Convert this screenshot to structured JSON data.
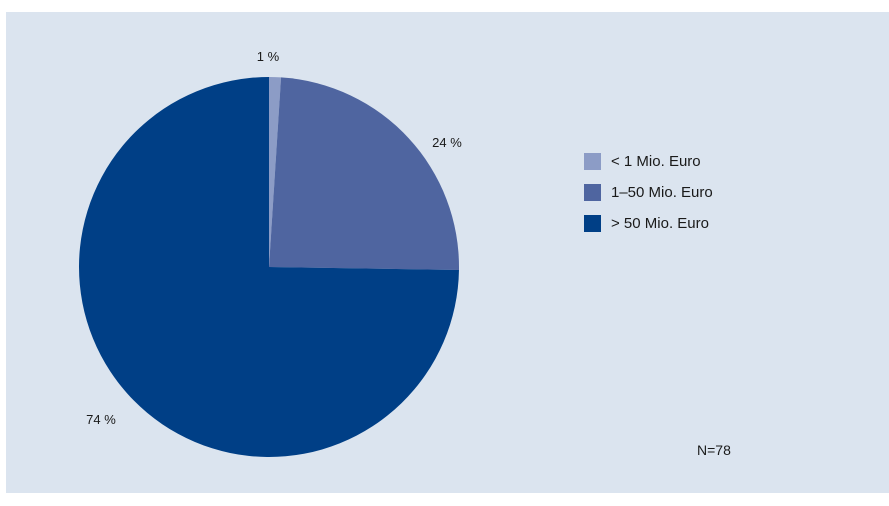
{
  "chart_data": {
    "type": "pie",
    "categories": [
      "< 1 Mio. Euro",
      "1–50 Mio. Euro",
      "> 50 Mio. Euro"
    ],
    "values": [
      1,
      24,
      74
    ],
    "value_labels": [
      "1 %",
      "24 %",
      "74 %"
    ],
    "colors": [
      "#8c9cc6",
      "#4f65a0",
      "#003f86"
    ],
    "legend_position": "right",
    "note": "N=78"
  },
  "colors": {
    "background": "#dbe4ef"
  }
}
